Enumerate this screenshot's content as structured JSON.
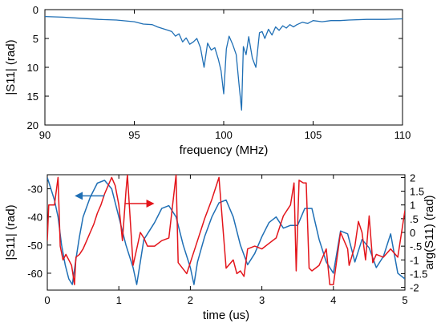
{
  "colors": {
    "blue": "#1f6fb5",
    "red": "#e3151b",
    "axis": "#000000"
  },
  "chart_data": [
    {
      "type": "line",
      "xlabel": "frequency (MHz)",
      "ylabel": "|S11| (rad)",
      "xlim": [
        90,
        110
      ],
      "ylim": [
        0,
        20
      ],
      "y_inverted": true,
      "xticks": [
        "90",
        "95",
        "100",
        "105",
        "110"
      ],
      "yticks": [
        "0",
        "5",
        "10",
        "15",
        "20"
      ],
      "series": [
        {
          "color": "#1f6fb5",
          "x": [
            90,
            91,
            92,
            93,
            94,
            95,
            95.5,
            96,
            96.3,
            96.6,
            96.9,
            97.1,
            97.3,
            97.5,
            97.7,
            97.9,
            98.1,
            98.3,
            98.5,
            98.7,
            98.9,
            99.1,
            99.3,
            99.5,
            99.7,
            99.85,
            100.0,
            100.15,
            100.3,
            100.5,
            100.7,
            100.85,
            101.0,
            101.1,
            101.25,
            101.4,
            101.6,
            101.8,
            102.0,
            102.15,
            102.3,
            102.5,
            102.7,
            102.9,
            103.1,
            103.3,
            103.5,
            103.7,
            103.9,
            104.1,
            104.4,
            104.7,
            105,
            105.5,
            106,
            106.5,
            107,
            108,
            109,
            110
          ],
          "values": [
            1.2,
            1.3,
            1.5,
            1.7,
            1.8,
            2.1,
            2.5,
            2.6,
            3.0,
            3.3,
            3.6,
            3.8,
            4.6,
            4.2,
            5.6,
            4.9,
            6.0,
            5.6,
            5.0,
            6.6,
            10.0,
            5.8,
            7.0,
            6.6,
            8.6,
            10.6,
            14.6,
            6.8,
            4.6,
            6.0,
            7.8,
            12.8,
            17.4,
            6.4,
            7.8,
            4.7,
            8.4,
            10.0,
            4.0,
            3.8,
            5.0,
            3.4,
            4.4,
            3.0,
            3.6,
            2.8,
            3.2,
            2.6,
            3.0,
            2.6,
            2.2,
            2.4,
            1.9,
            2.1,
            1.9,
            1.9,
            1.8,
            1.7,
            1.7,
            1.6
          ]
        }
      ]
    },
    {
      "type": "line",
      "xlabel": "time (us)",
      "ylabel": "|S11| (rad)",
      "y2label": "arg(S11) (rad)",
      "xlim": [
        0,
        5
      ],
      "ylim": [
        -66,
        -25
      ],
      "y2lim": [
        -2.1,
        2.1
      ],
      "xticks": [
        "0",
        "1",
        "2",
        "3",
        "4",
        "5"
      ],
      "yticks": [
        "-30",
        "-40",
        "-50",
        "-60"
      ],
      "y2ticks": [
        "2",
        "1.5",
        "1",
        ".5",
        "0",
        "-.5",
        "-1",
        "-1.5",
        "-2"
      ],
      "series": [
        {
          "color": "#1f6fb5",
          "axis": "left",
          "x": [
            0,
            0.05,
            0.1,
            0.15,
            0.2,
            0.25,
            0.3,
            0.35,
            0.4,
            0.45,
            0.5,
            0.6,
            0.7,
            0.8,
            0.9,
            1.0,
            1.1,
            1.2,
            1.25,
            1.3,
            1.35,
            1.4,
            1.5,
            1.6,
            1.7,
            1.8,
            1.9,
            2.0,
            2.05,
            2.1,
            2.2,
            2.3,
            2.4,
            2.5,
            2.6,
            2.7,
            2.8,
            2.9,
            3.0,
            3.1,
            3.2,
            3.3,
            3.4,
            3.5,
            3.6,
            3.7,
            3.8,
            3.9,
            4.0,
            4.1,
            4.2,
            4.3,
            4.4,
            4.5,
            4.6,
            4.7,
            4.8,
            4.9,
            5.0
          ],
          "values": [
            -26,
            -30,
            -34,
            -40,
            -50,
            -57,
            -62,
            -64,
            -55,
            -47,
            -40,
            -33,
            -28,
            -27,
            -30,
            -40,
            -50,
            -58,
            -64,
            -56,
            -48,
            -46,
            -42,
            -37,
            -36,
            -40,
            -50,
            -58,
            -64,
            -56,
            -47,
            -40,
            -35,
            -34,
            -40,
            -50,
            -57,
            -53,
            -47,
            -42,
            -40,
            -44,
            -43,
            -43,
            -37,
            -37,
            -48,
            -56,
            -60,
            -45,
            -46,
            -56,
            -48,
            -51,
            -58,
            -54,
            -46,
            -60,
            -62
          ]
        },
        {
          "color": "#e3151b",
          "axis": "right",
          "x": [
            0,
            0.02,
            0.05,
            0.1,
            0.15,
            0.18,
            0.22,
            0.26,
            0.3,
            0.34,
            0.38,
            0.4,
            0.45,
            0.5,
            0.55,
            0.6,
            0.65,
            0.7,
            0.75,
            0.8,
            0.85,
            0.9,
            0.95,
            1.0,
            1.05,
            1.1,
            1.12,
            1.2,
            1.3,
            1.35,
            1.4,
            1.5,
            1.6,
            1.7,
            1.8,
            1.83,
            1.95,
            2.1,
            2.2,
            2.3,
            2.4,
            2.5,
            2.6,
            2.65,
            2.7,
            2.75,
            2.8,
            2.9,
            3.0,
            3.1,
            3.2,
            3.3,
            3.4,
            3.45,
            3.48,
            3.52,
            3.58,
            3.62,
            3.66,
            3.7,
            3.8,
            3.9,
            3.95,
            4.0,
            4.1,
            4.2,
            4.22,
            4.3,
            4.35,
            4.4,
            4.45,
            4.5,
            4.55,
            4.6,
            4.7,
            4.8,
            4.9,
            5.0
          ],
          "values": [
            -0.3,
            1.0,
            1.0,
            1.0,
            2.0,
            -0.5,
            -1.0,
            -0.8,
            -1.0,
            -1.2,
            -1.9,
            -0.9,
            -0.8,
            -0.6,
            -0.3,
            0.0,
            0.3,
            0.7,
            1.0,
            1.4,
            1.7,
            2.0,
            1.7,
            1.0,
            -0.3,
            1.5,
            2.1,
            -1.2,
            0.0,
            -0.2,
            -0.5,
            -0.5,
            -0.3,
            -0.2,
            2.1,
            -1.1,
            -1.5,
            -0.3,
            0.5,
            1.2,
            2.0,
            -1.3,
            -1.0,
            -1.5,
            -1.4,
            -1.6,
            -0.6,
            -0.5,
            -0.6,
            -0.4,
            -0.2,
            0.6,
            1.0,
            1.8,
            -1.4,
            1.9,
            1.8,
            1.8,
            -1.3,
            -1.4,
            -1.2,
            -0.6,
            -1.9,
            -1.9,
            0.0,
            -0.6,
            -1.2,
            -0.5,
            0.4,
            0.0,
            -1.0,
            0.6,
            -1.1,
            -0.8,
            -0.9,
            -0.6,
            -0.9,
            0.8
          ]
        }
      ],
      "annotations": [
        {
          "direction": "left",
          "points_to_axis": "left",
          "color": "#1f6fb5"
        },
        {
          "direction": "right",
          "points_to_axis": "right",
          "color": "#e3151b"
        }
      ]
    }
  ]
}
